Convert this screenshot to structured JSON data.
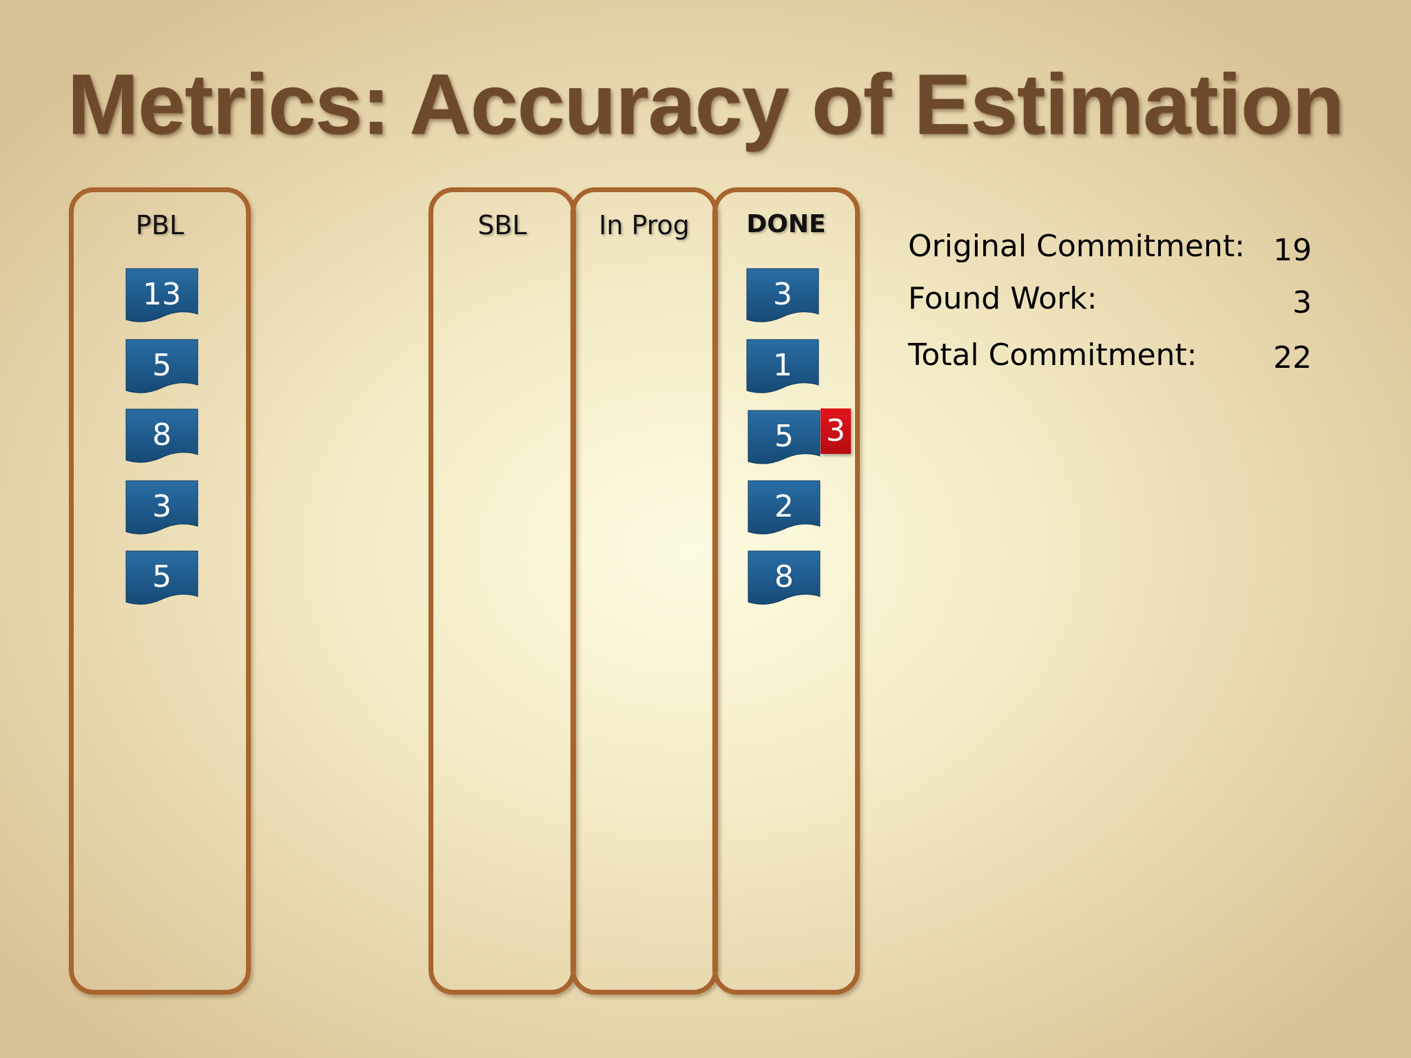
{
  "title": "Metrics:  Accuracy of Estimation",
  "columns": {
    "pbl": {
      "label": "PBL",
      "cards": [
        "13",
        "5",
        "8",
        "3",
        "5"
      ]
    },
    "sbl": {
      "label": "SBL",
      "cards": []
    },
    "in_prog": {
      "label": "In Prog",
      "cards": []
    },
    "done": {
      "label": "DONE",
      "cards": [
        "3",
        "1",
        "5",
        "2",
        "8"
      ],
      "found_work_tag": "3"
    }
  },
  "metrics": {
    "original_commitment": {
      "label": "Original Commitment:",
      "value": "19"
    },
    "found_work": {
      "label": "Found Work:",
      "value": "3"
    },
    "total_commitment": {
      "label": "Total Commitment:",
      "value": "22"
    }
  },
  "colors": {
    "card": "#1d5a8c",
    "column_border": "#a8652e",
    "title": "#6e4a2c",
    "found_tag": "#d0121a"
  }
}
